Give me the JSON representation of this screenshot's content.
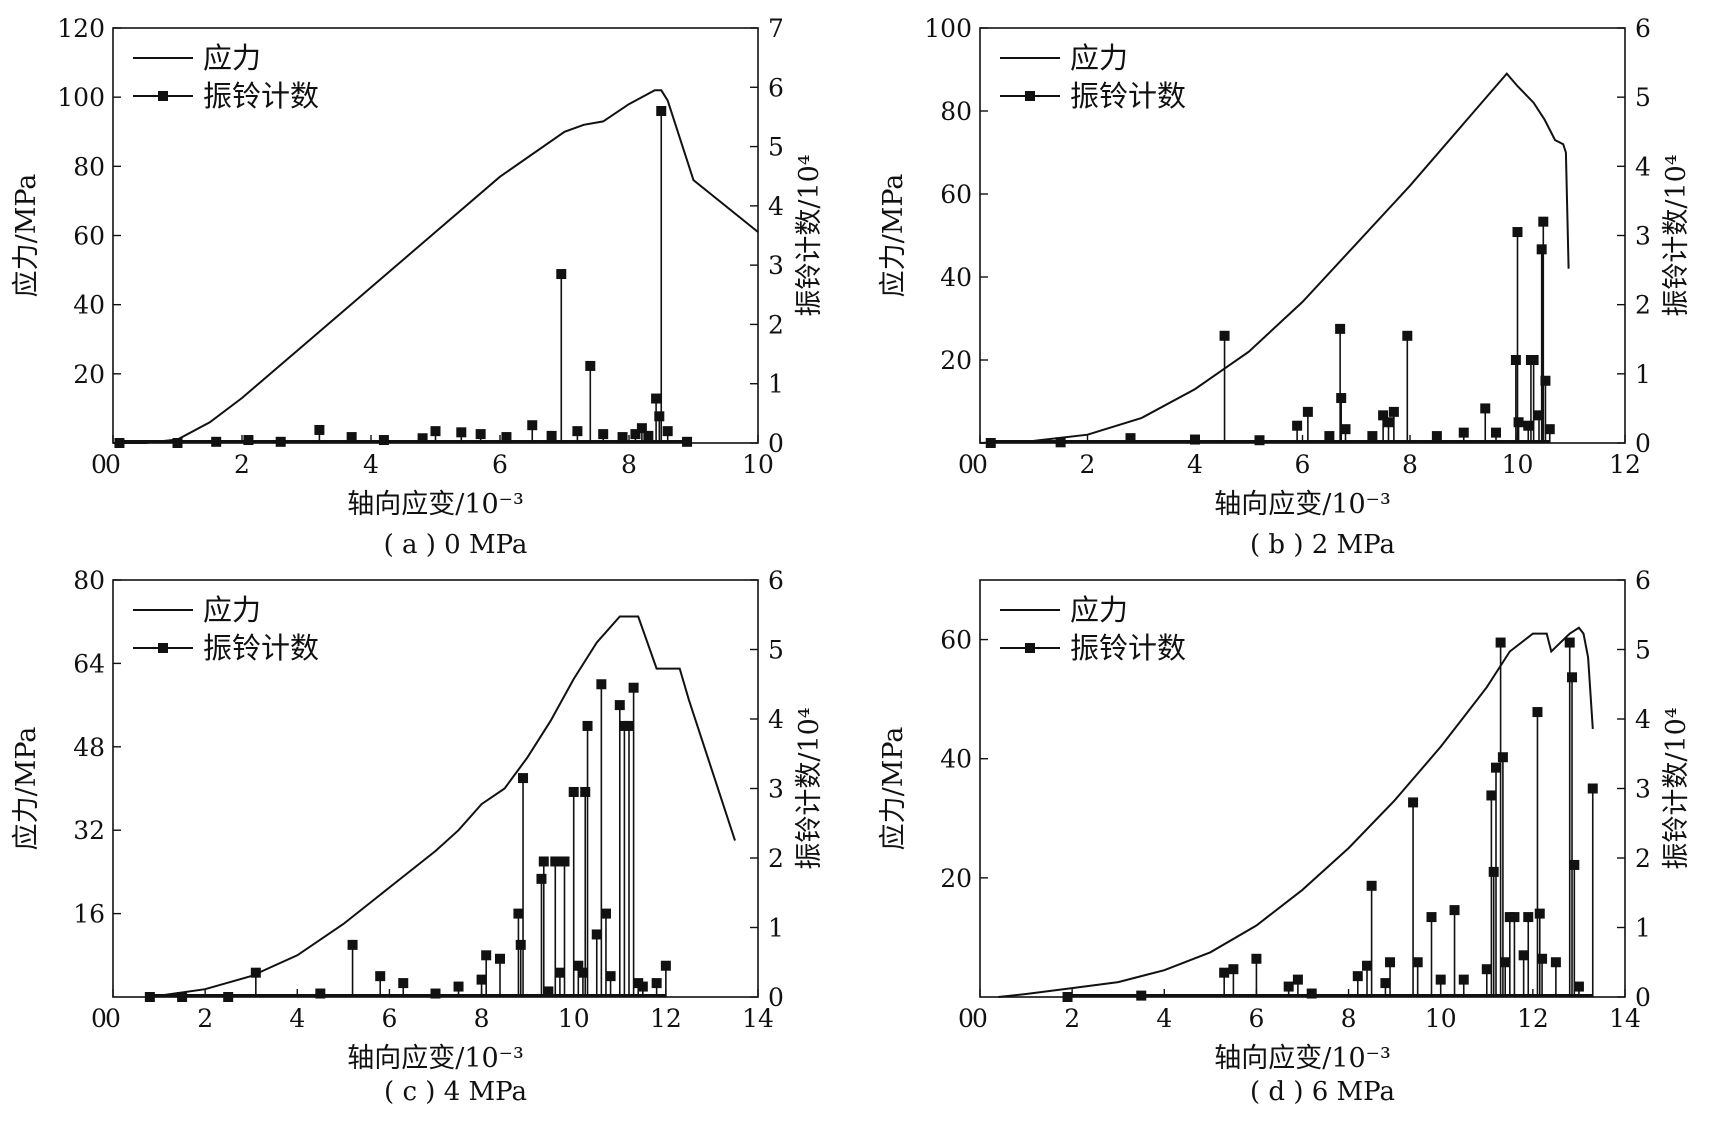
{
  "figure": {
    "legend_stress": "应力",
    "legend_ring": "振铃计数",
    "xlabel": "轴向应变/10⁻³",
    "ylabel_left": "应力/MPa",
    "ylabel_right": "振铃计数/10⁴"
  },
  "chart_data": [
    {
      "type": "line",
      "caption": "( a ) 0 MPa",
      "xlabel": "轴向应变/10⁻³",
      "ylabel": "应力/MPa",
      "y2label": "振铃计数/10⁴",
      "xlim": [
        0,
        10
      ],
      "ylim": [
        0,
        120
      ],
      "y2lim": [
        0,
        7
      ],
      "xticks": [
        0,
        2,
        4,
        6,
        8,
        10
      ],
      "yticks": [
        20,
        40,
        60,
        80,
        100,
        120
      ],
      "y2ticks": [
        0,
        1,
        2,
        3,
        4,
        5,
        6,
        7
      ],
      "legend": "top-left",
      "series": [
        {
          "name": "应力",
          "axis": "left",
          "style": "line",
          "x": [
            0,
            0.5,
            1.0,
            1.5,
            2.0,
            3.0,
            4.0,
            5.0,
            6.0,
            7.0,
            7.3,
            7.6,
            8.0,
            8.4,
            8.5,
            8.6,
            9.0,
            10.0
          ],
          "y": [
            0,
            0,
            1,
            6,
            13,
            29,
            45,
            61,
            77,
            90,
            92,
            93,
            98,
            102,
            102,
            99,
            76,
            61
          ]
        },
        {
          "name": "振铃计数",
          "axis": "right",
          "style": "stem",
          "x": [
            0.1,
            1.0,
            1.6,
            2.1,
            2.6,
            3.2,
            3.7,
            4.2,
            4.8,
            5.0,
            5.4,
            5.7,
            6.1,
            6.5,
            6.8,
            6.95,
            7.2,
            7.4,
            7.6,
            7.9,
            8.1,
            8.2,
            8.3,
            8.42,
            8.47,
            8.5,
            8.6,
            8.9
          ],
          "y": [
            0,
            0,
            0.02,
            0.05,
            0.02,
            0.22,
            0.1,
            0.05,
            0.08,
            0.2,
            0.18,
            0.15,
            0.1,
            0.3,
            0.12,
            2.85,
            0.2,
            1.3,
            0.15,
            0.1,
            0.15,
            0.25,
            0.12,
            0.75,
            0.45,
            5.6,
            0.2,
            0.02
          ]
        }
      ]
    },
    {
      "type": "line",
      "caption": "( b ) 2 MPa",
      "xlabel": "轴向应变/10⁻³",
      "ylabel": "应力/MPa",
      "y2label": "振铃计数/10⁴",
      "xlim": [
        0,
        12
      ],
      "ylim": [
        0,
        100
      ],
      "y2lim": [
        0,
        6
      ],
      "xticks": [
        0,
        2,
        4,
        6,
        8,
        10,
        12
      ],
      "yticks": [
        20,
        40,
        60,
        80,
        100
      ],
      "y2ticks": [
        0,
        1,
        2,
        3,
        4,
        5,
        6
      ],
      "legend": "top-left",
      "series": [
        {
          "name": "应力",
          "axis": "left",
          "style": "line",
          "x": [
            0,
            1,
            2,
            3,
            4,
            5,
            6,
            7,
            8,
            9,
            9.6,
            9.8,
            10.0,
            10.3,
            10.5,
            10.7,
            10.85,
            10.9,
            10.95
          ],
          "y": [
            0,
            0.5,
            2,
            6,
            13,
            22,
            34,
            48,
            62,
            77,
            86,
            89,
            86,
            82,
            78,
            73,
            72,
            70,
            42
          ]
        },
        {
          "name": "振铃计数",
          "axis": "right",
          "style": "stem",
          "x": [
            0.2,
            1.5,
            2.8,
            4.0,
            4.55,
            5.2,
            5.9,
            6.1,
            6.5,
            6.7,
            6.72,
            6.8,
            7.3,
            7.5,
            7.6,
            7.7,
            7.95,
            8.5,
            9.0,
            9.4,
            9.6,
            9.97,
            10.0,
            10.02,
            10.2,
            10.25,
            10.3,
            10.4,
            10.45,
            10.48,
            10.52,
            10.6
          ],
          "y": [
            0,
            0.01,
            0.07,
            0.05,
            1.55,
            0.04,
            0.25,
            0.45,
            0.1,
            1.65,
            0.65,
            0.2,
            0.1,
            0.4,
            0.3,
            0.45,
            1.55,
            0.1,
            0.15,
            0.5,
            0.15,
            1.2,
            3.05,
            0.3,
            0.25,
            1.2,
            1.2,
            0.4,
            2.8,
            3.2,
            0.9,
            0.2
          ]
        }
      ]
    },
    {
      "type": "line",
      "caption": "( c ) 4 MPa",
      "xlabel": "轴向应变/10⁻³",
      "ylabel": "应力/MPa",
      "y2label": "振铃计数/10⁴",
      "xlim": [
        0,
        14
      ],
      "ylim": [
        0,
        80
      ],
      "y2lim": [
        0,
        6
      ],
      "xticks": [
        0,
        2,
        4,
        6,
        8,
        10,
        12,
        14
      ],
      "yticks": [
        16,
        32,
        48,
        64,
        80
      ],
      "y2ticks": [
        0,
        1,
        2,
        3,
        4,
        5,
        6
      ],
      "legend": "top-left",
      "series": [
        {
          "name": "应力",
          "axis": "left",
          "style": "line",
          "x": [
            0.8,
            2,
            3,
            4,
            5,
            6,
            7,
            7.5,
            8.0,
            8.5,
            9.0,
            9.5,
            10.0,
            10.5,
            11.0,
            11.4,
            11.6,
            11.8,
            12.3,
            12.5,
            13.5
          ],
          "y": [
            0,
            1.5,
            4,
            8,
            14,
            21,
            28,
            32,
            37,
            40,
            46,
            53,
            61,
            68,
            73,
            73,
            68,
            63,
            63,
            57,
            30
          ]
        },
        {
          "name": "振铃计数",
          "axis": "right",
          "style": "stem",
          "x": [
            0.8,
            1.5,
            2.5,
            3.1,
            4.5,
            5.2,
            5.8,
            6.3,
            7.0,
            7.5,
            8.0,
            8.1,
            8.4,
            8.8,
            8.85,
            8.9,
            9.3,
            9.35,
            9.45,
            9.6,
            9.7,
            9.8,
            10.0,
            10.1,
            10.2,
            10.25,
            10.3,
            10.5,
            10.6,
            10.7,
            10.8,
            11.0,
            11.1,
            11.2,
            11.3,
            11.4,
            11.5,
            11.8,
            12.0
          ],
          "y": [
            0,
            0,
            0,
            0.35,
            0.05,
            0.75,
            0.3,
            0.2,
            0.05,
            0.15,
            0.25,
            0.6,
            0.55,
            1.2,
            0.75,
            3.15,
            1.7,
            1.95,
            0.08,
            1.95,
            0.35,
            1.95,
            2.95,
            0.45,
            0.35,
            2.95,
            3.9,
            0.9,
            4.5,
            1.2,
            0.3,
            4.2,
            3.9,
            3.9,
            4.45,
            0.2,
            0.15,
            0.2,
            0.45
          ]
        }
      ]
    },
    {
      "type": "line",
      "caption": "( d ) 6 MPa",
      "xlabel": "轴向应变/10⁻³",
      "ylabel": "应力/MPa",
      "y2label": "振铃计数/10⁴",
      "xlim": [
        0,
        14
      ],
      "ylim": [
        0,
        70
      ],
      "y2lim": [
        0,
        6
      ],
      "xticks": [
        0,
        2,
        4,
        6,
        8,
        10,
        12,
        14
      ],
      "yticks": [
        20,
        40,
        60
      ],
      "y2ticks": [
        0,
        1,
        2,
        3,
        4,
        5,
        6
      ],
      "legend": "top-left",
      "series": [
        {
          "name": "应力",
          "axis": "left",
          "style": "line",
          "x": [
            0.4,
            1,
            2,
            3,
            4,
            5,
            6,
            7,
            8,
            9,
            10,
            10.5,
            11.0,
            11.5,
            12.0,
            12.3,
            12.4,
            12.8,
            13.0,
            13.1,
            13.2,
            13.3
          ],
          "y": [
            0,
            0.5,
            1.5,
            2.5,
            4.5,
            7.5,
            12,
            18,
            25,
            33,
            42,
            47,
            52,
            58,
            61,
            61,
            58,
            61,
            62,
            61,
            57,
            45
          ]
        },
        {
          "name": "振铃计数",
          "axis": "right",
          "style": "stem",
          "x": [
            1.9,
            3.5,
            5.3,
            5.5,
            6.0,
            6.7,
            6.9,
            7.2,
            8.2,
            8.4,
            8.5,
            8.8,
            8.9,
            9.4,
            9.5,
            9.8,
            10.0,
            10.3,
            10.5,
            11.0,
            11.1,
            11.15,
            11.2,
            11.3,
            11.35,
            11.4,
            11.5,
            11.6,
            11.8,
            11.9,
            12.1,
            12.15,
            12.2,
            12.5,
            12.8,
            12.85,
            12.9,
            13.0,
            13.3
          ],
          "y": [
            0,
            0.02,
            0.35,
            0.4,
            0.55,
            0.15,
            0.25,
            0.05,
            0.3,
            0.45,
            1.6,
            0.2,
            0.5,
            2.8,
            0.5,
            1.15,
            0.25,
            1.25,
            0.25,
            0.4,
            2.9,
            1.8,
            3.3,
            5.1,
            3.45,
            0.5,
            1.15,
            1.15,
            0.6,
            1.15,
            4.1,
            1.2,
            0.55,
            0.5,
            5.1,
            4.6,
            1.9,
            0.15,
            3.0
          ]
        }
      ]
    }
  ]
}
